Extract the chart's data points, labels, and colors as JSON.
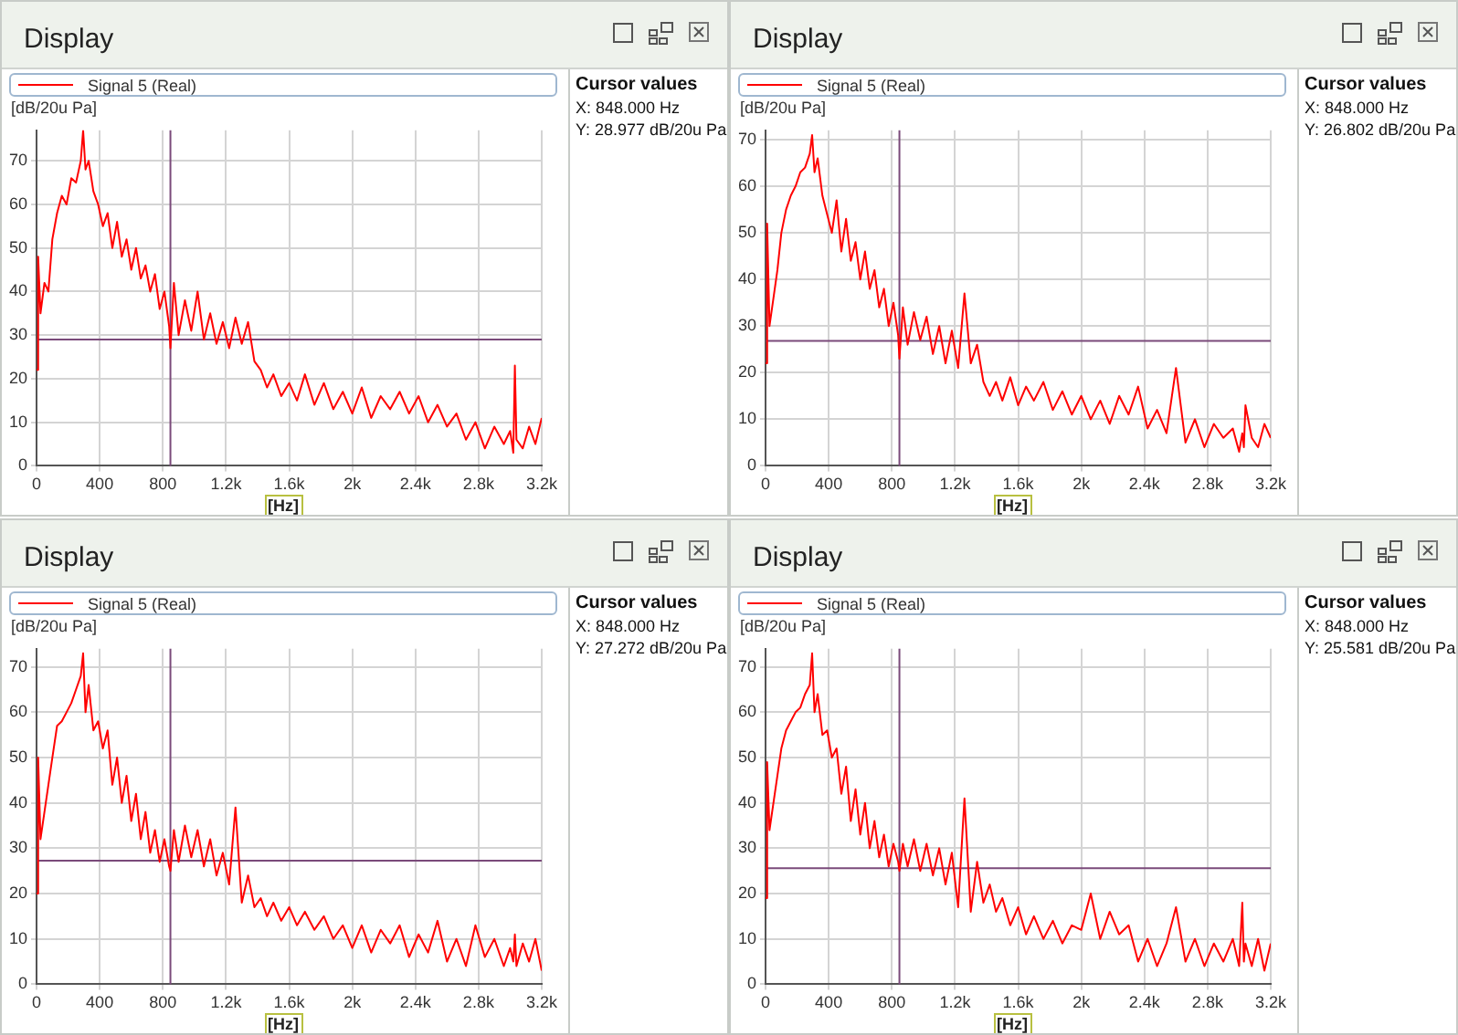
{
  "chart_data": [
    {
      "type": "line",
      "title": "Display",
      "xlabel": "[Hz]",
      "ylabel": "[dB/20u Pa]",
      "legend": "top",
      "grid": true,
      "marker": "none",
      "xlim": [
        0,
        3200
      ],
      "ylim": [
        0,
        77
      ],
      "xticks": [
        0,
        400,
        800,
        {
          "value": 1200,
          "label": "1.2k"
        },
        {
          "value": 1600,
          "label": "1.6k"
        },
        {
          "value": 2000,
          "label": "2k"
        },
        {
          "value": 2400,
          "label": "2.4k"
        },
        {
          "value": 2800,
          "label": "2.8k"
        },
        {
          "value": 3200,
          "label": "3.2k"
        }
      ],
      "yticks": [
        0,
        10,
        20,
        30,
        40,
        50,
        60,
        70
      ],
      "ref_lines": [
        {
          "axis": "x",
          "value": 848,
          "color": "#7a4a7a",
          "line_style": "solid"
        },
        {
          "axis": "y",
          "value": 28.977,
          "color": "#7a4a7a",
          "line_style": "solid"
        }
      ],
      "annotations": [
        "Cursor values",
        "X: 848.000 Hz",
        "Y: 28.977 dB/20u Pa"
      ],
      "x": [
        0,
        10,
        25,
        50,
        75,
        100,
        130,
        160,
        190,
        220,
        250,
        280,
        295,
        310,
        330,
        360,
        390,
        420,
        450,
        480,
        510,
        540,
        570,
        600,
        630,
        660,
        690,
        720,
        750,
        780,
        810,
        840,
        848,
        870,
        900,
        940,
        980,
        1020,
        1060,
        1100,
        1140,
        1180,
        1220,
        1260,
        1300,
        1340,
        1380,
        1420,
        1460,
        1500,
        1550,
        1600,
        1650,
        1700,
        1760,
        1820,
        1880,
        1940,
        2000,
        2060,
        2120,
        2180,
        2240,
        2300,
        2360,
        2420,
        2480,
        2540,
        2600,
        2660,
        2720,
        2780,
        2840,
        2900,
        2960,
        3000,
        3020,
        3030,
        3040,
        3080,
        3120,
        3160,
        3200
      ],
      "series": [
        {
          "name": "Signal 5 (Real)",
          "color": "#ff0000",
          "values": [
            22,
            48,
            35,
            42,
            40,
            52,
            58,
            62,
            60,
            66,
            65,
            70,
            77,
            68,
            70,
            63,
            60,
            55,
            58,
            50,
            56,
            48,
            52,
            45,
            50,
            43,
            46,
            40,
            44,
            36,
            40,
            32,
            27,
            42,
            30,
            38,
            31,
            40,
            29,
            35,
            28,
            33,
            27,
            34,
            28,
            33,
            24,
            22,
            18,
            21,
            16,
            19,
            15,
            21,
            14,
            19,
            13,
            17,
            12,
            18,
            11,
            16,
            13,
            17,
            12,
            16,
            10,
            14,
            9,
            12,
            6,
            10,
            4,
            9,
            5,
            8,
            3,
            23,
            6,
            4,
            9,
            5,
            11
          ]
        }
      ]
    },
    {
      "type": "line",
      "title": "Display",
      "xlabel": "[Hz]",
      "ylabel": "[dB/20u Pa]",
      "legend": "top",
      "grid": true,
      "marker": "none",
      "xlim": [
        0,
        3200
      ],
      "ylim": [
        0,
        72
      ],
      "xticks": [
        0,
        400,
        800,
        {
          "value": 1200,
          "label": "1.2k"
        },
        {
          "value": 1600,
          "label": "1.6k"
        },
        {
          "value": 2000,
          "label": "2k"
        },
        {
          "value": 2400,
          "label": "2.4k"
        },
        {
          "value": 2800,
          "label": "2.8k"
        },
        {
          "value": 3200,
          "label": "3.2k"
        }
      ],
      "yticks": [
        0,
        10,
        20,
        30,
        40,
        50,
        60,
        70
      ],
      "ref_lines": [
        {
          "axis": "x",
          "value": 848,
          "color": "#7a4a7a",
          "line_style": "solid"
        },
        {
          "axis": "y",
          "value": 26.802,
          "color": "#7a4a7a",
          "line_style": "solid"
        }
      ],
      "annotations": [
        "Cursor values",
        "X: 848.000 Hz",
        "Y: 26.802 dB/20u Pa"
      ],
      "x": [
        0,
        10,
        25,
        50,
        75,
        100,
        130,
        160,
        190,
        220,
        250,
        280,
        295,
        310,
        330,
        360,
        390,
        420,
        450,
        480,
        510,
        540,
        570,
        600,
        630,
        660,
        690,
        720,
        750,
        780,
        810,
        840,
        848,
        870,
        900,
        940,
        980,
        1020,
        1060,
        1100,
        1140,
        1180,
        1220,
        1260,
        1300,
        1340,
        1380,
        1420,
        1460,
        1500,
        1550,
        1600,
        1650,
        1700,
        1760,
        1820,
        1880,
        1940,
        2000,
        2060,
        2120,
        2180,
        2240,
        2300,
        2360,
        2420,
        2480,
        2540,
        2600,
        2660,
        2720,
        2780,
        2840,
        2900,
        2960,
        3000,
        3020,
        3030,
        3040,
        3080,
        3120,
        3160,
        3200
      ],
      "series": [
        {
          "name": "Signal 5 (Real)",
          "color": "#ff0000",
          "values": [
            22,
            52,
            30,
            36,
            42,
            50,
            55,
            58,
            60,
            63,
            64,
            67,
            71,
            63,
            66,
            58,
            54,
            50,
            57,
            46,
            53,
            44,
            48,
            40,
            46,
            38,
            42,
            34,
            38,
            30,
            35,
            28,
            23,
            34,
            26,
            33,
            27,
            32,
            24,
            30,
            22,
            29,
            21,
            37,
            22,
            26,
            18,
            15,
            18,
            14,
            19,
            13,
            17,
            14,
            18,
            12,
            16,
            11,
            15,
            10,
            14,
            9,
            15,
            11,
            17,
            8,
            12,
            7,
            21,
            5,
            10,
            4,
            9,
            6,
            8,
            3,
            7,
            4,
            13,
            6,
            4,
            9,
            6
          ]
        }
      ]
    },
    {
      "type": "line",
      "title": "Display",
      "xlabel": "[Hz]",
      "ylabel": "[dB/20u Pa]",
      "legend": "top",
      "grid": true,
      "marker": "none",
      "xlim": [
        0,
        3200
      ],
      "ylim": [
        0,
        74
      ],
      "xticks": [
        0,
        400,
        800,
        {
          "value": 1200,
          "label": "1.2k"
        },
        {
          "value": 1600,
          "label": "1.6k"
        },
        {
          "value": 2000,
          "label": "2k"
        },
        {
          "value": 2400,
          "label": "2.4k"
        },
        {
          "value": 2800,
          "label": "2.8k"
        },
        {
          "value": 3200,
          "label": "3.2k"
        }
      ],
      "yticks": [
        0,
        10,
        20,
        30,
        40,
        50,
        60,
        70
      ],
      "ref_lines": [
        {
          "axis": "x",
          "value": 848,
          "color": "#7a4a7a",
          "line_style": "solid"
        },
        {
          "axis": "y",
          "value": 27.272,
          "color": "#7a4a7a",
          "line_style": "solid"
        }
      ],
      "annotations": [
        "Cursor values",
        "X: 848.000 Hz",
        "Y: 27.272 dB/20u Pa"
      ],
      "x": [
        0,
        10,
        25,
        50,
        75,
        100,
        130,
        160,
        190,
        220,
        250,
        280,
        295,
        310,
        330,
        360,
        390,
        420,
        450,
        480,
        510,
        540,
        570,
        600,
        630,
        660,
        690,
        720,
        750,
        780,
        810,
        840,
        848,
        870,
        900,
        940,
        980,
        1020,
        1060,
        1100,
        1140,
        1180,
        1220,
        1260,
        1300,
        1340,
        1380,
        1420,
        1460,
        1500,
        1550,
        1600,
        1650,
        1700,
        1760,
        1820,
        1880,
        1940,
        2000,
        2060,
        2120,
        2180,
        2240,
        2300,
        2360,
        2420,
        2480,
        2540,
        2600,
        2660,
        2720,
        2780,
        2840,
        2900,
        2960,
        3000,
        3020,
        3030,
        3040,
        3080,
        3120,
        3160,
        3200
      ],
      "series": [
        {
          "name": "Signal 5 (Real)",
          "color": "#ff0000",
          "values": [
            20,
            50,
            32,
            38,
            44,
            50,
            57,
            58,
            60,
            62,
            65,
            68,
            73,
            60,
            66,
            56,
            58,
            52,
            56,
            44,
            50,
            40,
            46,
            36,
            42,
            32,
            38,
            29,
            34,
            27,
            32,
            26,
            25,
            34,
            27,
            35,
            28,
            34,
            26,
            32,
            24,
            29,
            22,
            39,
            18,
            24,
            17,
            19,
            15,
            18,
            14,
            17,
            13,
            16,
            12,
            15,
            10,
            13,
            8,
            13,
            7,
            12,
            9,
            13,
            6,
            11,
            7,
            14,
            5,
            10,
            4,
            13,
            6,
            10,
            4,
            8,
            5,
            11,
            4,
            9,
            5,
            10,
            3
          ]
        }
      ]
    },
    {
      "type": "line",
      "title": "Display",
      "xlabel": "[Hz]",
      "ylabel": "[dB/20u Pa]",
      "legend": "top",
      "grid": true,
      "marker": "none",
      "xlim": [
        0,
        3200
      ],
      "ylim": [
        0,
        74
      ],
      "xticks": [
        0,
        400,
        800,
        {
          "value": 1200,
          "label": "1.2k"
        },
        {
          "value": 1600,
          "label": "1.6k"
        },
        {
          "value": 2000,
          "label": "2k"
        },
        {
          "value": 2400,
          "label": "2.4k"
        },
        {
          "value": 2800,
          "label": "2.8k"
        },
        {
          "value": 3200,
          "label": "3.2k"
        }
      ],
      "yticks": [
        0,
        10,
        20,
        30,
        40,
        50,
        60,
        70
      ],
      "ref_lines": [
        {
          "axis": "x",
          "value": 848,
          "color": "#7a4a7a",
          "line_style": "solid"
        },
        {
          "axis": "y",
          "value": 25.581,
          "color": "#7a4a7a",
          "line_style": "solid"
        }
      ],
      "annotations": [
        "Cursor values",
        "X: 848.000 Hz",
        "Y: 25.581 dB/20u Pa"
      ],
      "x": [
        0,
        10,
        25,
        50,
        75,
        100,
        130,
        160,
        190,
        220,
        250,
        280,
        295,
        310,
        330,
        360,
        390,
        420,
        450,
        480,
        510,
        540,
        570,
        600,
        630,
        660,
        690,
        720,
        750,
        780,
        810,
        840,
        848,
        870,
        900,
        940,
        980,
        1020,
        1060,
        1100,
        1140,
        1180,
        1220,
        1260,
        1300,
        1340,
        1380,
        1420,
        1460,
        1500,
        1550,
        1600,
        1650,
        1700,
        1760,
        1820,
        1880,
        1940,
        2000,
        2060,
        2120,
        2180,
        2240,
        2300,
        2360,
        2420,
        2480,
        2540,
        2600,
        2660,
        2720,
        2780,
        2840,
        2900,
        2960,
        3000,
        3020,
        3030,
        3040,
        3080,
        3120,
        3160,
        3200
      ],
      "series": [
        {
          "name": "Signal 5 (Real)",
          "color": "#ff0000",
          "values": [
            19,
            49,
            34,
            40,
            46,
            52,
            56,
            58,
            60,
            61,
            64,
            66,
            73,
            60,
            64,
            55,
            56,
            50,
            52,
            42,
            48,
            36,
            43,
            33,
            40,
            30,
            36,
            28,
            33,
            26,
            31,
            27,
            25,
            31,
            26,
            32,
            25,
            31,
            24,
            30,
            22,
            29,
            17,
            41,
            16,
            27,
            18,
            22,
            16,
            19,
            13,
            17,
            11,
            15,
            10,
            14,
            9,
            13,
            12,
            20,
            10,
            16,
            11,
            13,
            5,
            10,
            4,
            9,
            17,
            5,
            10,
            4,
            9,
            5,
            10,
            4,
            18,
            5,
            9,
            4,
            10,
            3,
            9
          ]
        }
      ]
    }
  ]
}
